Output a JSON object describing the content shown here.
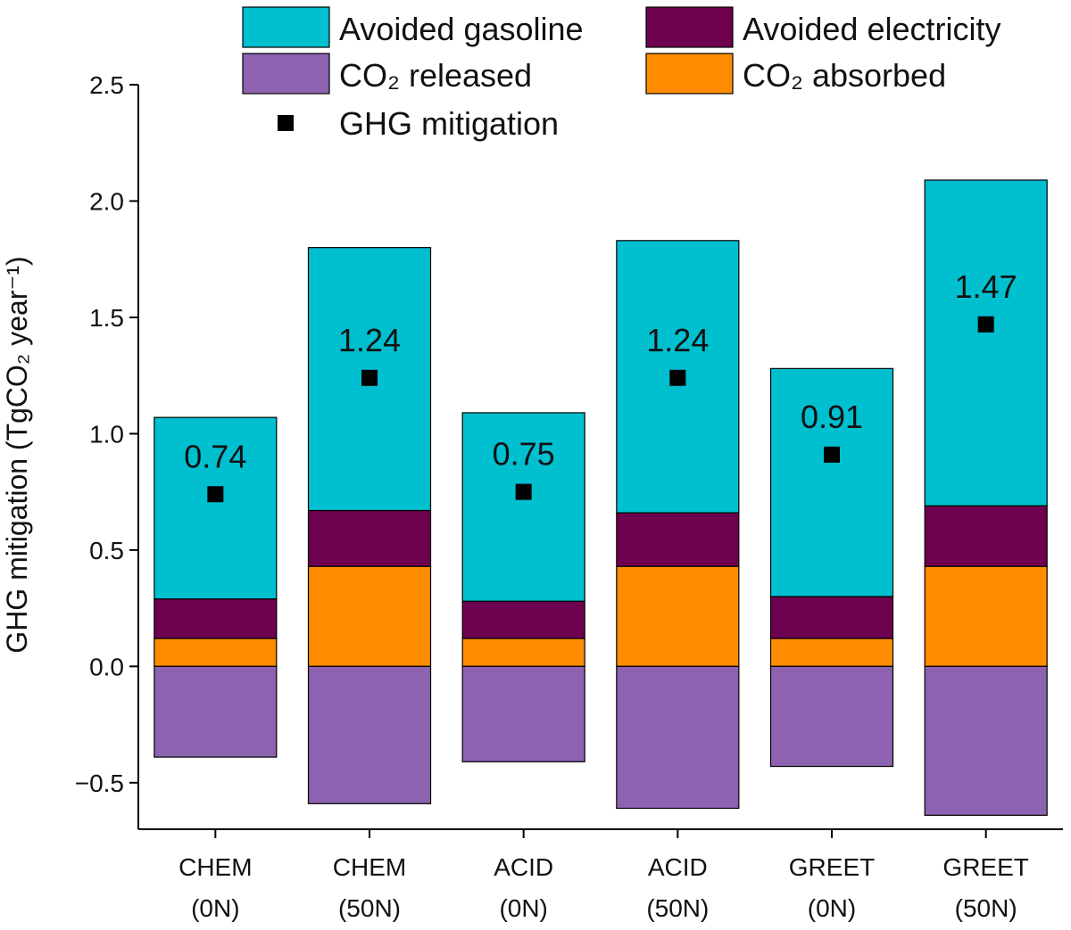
{
  "chart_data": {
    "type": "bar",
    "y_label": "GHG mitigation (TgCO₂ year⁻¹)",
    "categories": [
      "CHEM (0N)",
      "CHEM (50N)",
      "ACID (0N)",
      "ACID (50N)",
      "GREET (0N)",
      "GREET (50N)"
    ],
    "series": [
      {
        "name": "Avoided gasoline",
        "color": "#00bfcf",
        "values": [
          0.78,
          1.13,
          0.81,
          1.17,
          0.98,
          1.4
        ]
      },
      {
        "name": "Avoided electricity",
        "color": "#6e0050",
        "values": [
          0.17,
          0.24,
          0.16,
          0.23,
          0.18,
          0.26
        ]
      },
      {
        "name": "CO₂ released",
        "color": "#8d62b0",
        "values": [
          -0.39,
          -0.59,
          -0.41,
          -0.61,
          -0.43,
          -0.64
        ]
      },
      {
        "name": "CO₂ absorbed",
        "color": "#ff8c00",
        "values": [
          0.12,
          0.43,
          0.12,
          0.43,
          0.12,
          0.43
        ]
      },
      {
        "name": "GHG mitigation",
        "type": "scatter",
        "color": "#000000",
        "values": [
          0.74,
          1.24,
          0.75,
          1.24,
          0.91,
          1.47
        ]
      }
    ],
    "ylim": [
      -0.7,
      2.5
    ],
    "yticks": [
      {
        "value": -0.5,
        "label": "−0.5"
      },
      {
        "value": 0,
        "label": "0.0"
      },
      0.5,
      {
        "value": 1,
        "label": "1.0"
      },
      1.5,
      {
        "value": 2,
        "label": "2.0"
      },
      2.5
    ]
  }
}
